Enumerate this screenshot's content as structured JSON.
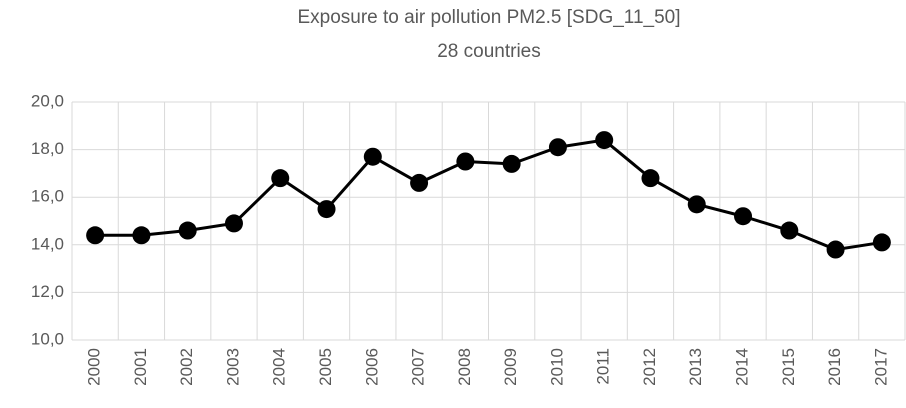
{
  "chart_data": {
    "type": "line",
    "title": "Exposure to air pollution PM2.5 [SDG_11_50]",
    "subtitle": "28 countries",
    "categories": [
      "2000",
      "2001",
      "2002",
      "2003",
      "2004",
      "2005",
      "2006",
      "2007",
      "2008",
      "2009",
      "2010",
      "2011",
      "2012",
      "2013",
      "2014",
      "2015",
      "2016",
      "2017"
    ],
    "values": [
      14.4,
      14.4,
      14.6,
      14.9,
      16.8,
      15.5,
      17.7,
      16.6,
      17.5,
      17.4,
      18.1,
      18.4,
      16.8,
      15.7,
      15.2,
      14.6,
      13.8,
      14.1
    ],
    "color": "#000000",
    "ylim": [
      10,
      20
    ],
    "yticks": [
      {
        "value": 10,
        "label": "10,0"
      },
      {
        "value": 12,
        "label": "12,0"
      },
      {
        "value": 14,
        "label": "14,0"
      },
      {
        "value": 16,
        "label": "16,0"
      },
      {
        "value": 18,
        "label": "18,0"
      },
      {
        "value": 20,
        "label": "20,0"
      }
    ],
    "grid": true
  }
}
